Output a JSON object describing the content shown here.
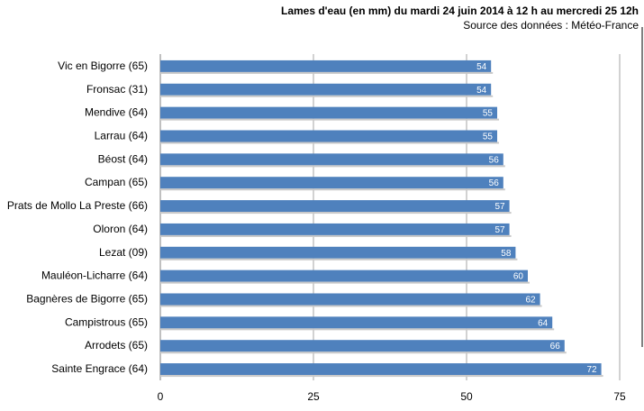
{
  "chart_data": {
    "type": "bar",
    "orientation": "horizontal",
    "title": "Lames d'eau (en mm) du mardi 24 juin 2014 à 12 h au mercredi 25 12h",
    "subtitle": "Source des données : Météo-France",
    "categories": [
      "Vic en Bigorre (65)",
      "Fronsac (31)",
      "Mendive (64)",
      "Larrau (64)",
      "Béost (64)",
      "Campan (65)",
      "Prats de Mollo La Preste (66)",
      "Oloron (64)",
      "Lezat (09)",
      "Mauléon-Licharre (64)",
      "Bagnères de Bigorre (65)",
      "Campistrous (65)",
      "Arrodets (65)",
      "Sainte Engrace (64)"
    ],
    "values": [
      54,
      54,
      55,
      55,
      56,
      56,
      57,
      57,
      58,
      60,
      62,
      64,
      66,
      72
    ],
    "xlim": [
      0,
      75
    ],
    "xticks": [
      0,
      25,
      50,
      75
    ],
    "xlabel": "",
    "ylabel": "",
    "grid": "vertical",
    "bar_color": "#4f81bd",
    "data_label_color": "#ffffff"
  }
}
